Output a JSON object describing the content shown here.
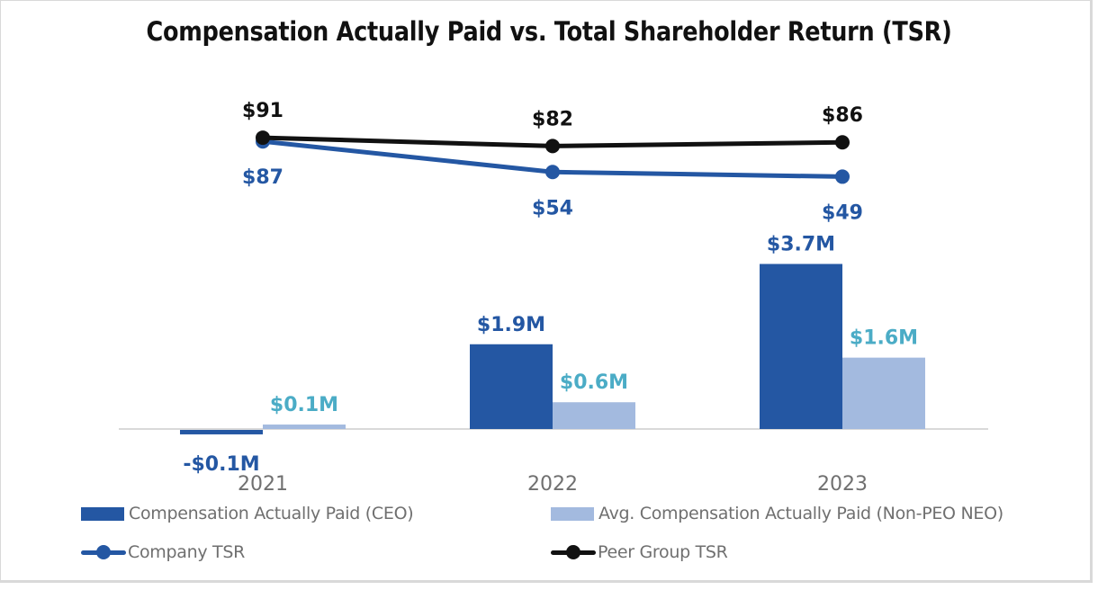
{
  "chart_data": {
    "type": "bar",
    "title": "Compensation Actually Paid vs. Total Shareholder Return (TSR)",
    "categories": [
      "2021",
      "2022",
      "2023"
    ],
    "xlabel": "",
    "ylabel": "",
    "grid": false,
    "legend_position": "bottom",
    "bar_series": [
      {
        "name": "Compensation Actually Paid (CEO)",
        "values": [
          -0.1,
          1.9,
          3.7
        ],
        "labels": [
          "-$0.1M",
          "$1.9M",
          "$3.7M"
        ],
        "color": "#2457A3",
        "label_color": "#2457A3",
        "unit": "$M"
      },
      {
        "name": "Avg. Compensation Actually Paid (Non-PEO NEO)",
        "values": [
          0.1,
          0.6,
          1.6
        ],
        "labels": [
          "$0.1M",
          "$0.6M",
          "$1.6M"
        ],
        "color": "#A3BADF",
        "label_color": "#4BACC6",
        "unit": "$M"
      }
    ],
    "line_series": [
      {
        "name": "Company TSR",
        "values": [
          87,
          54,
          49
        ],
        "labels": [
          "$87",
          "$54",
          "$49"
        ],
        "color": "#2457A3",
        "label_position": "below"
      },
      {
        "name": "Peer Group TSR",
        "values": [
          91,
          82,
          86
        ],
        "labels": [
          "$91",
          "$82",
          "$86"
        ],
        "color": "#111111",
        "label_position": "above"
      }
    ]
  }
}
